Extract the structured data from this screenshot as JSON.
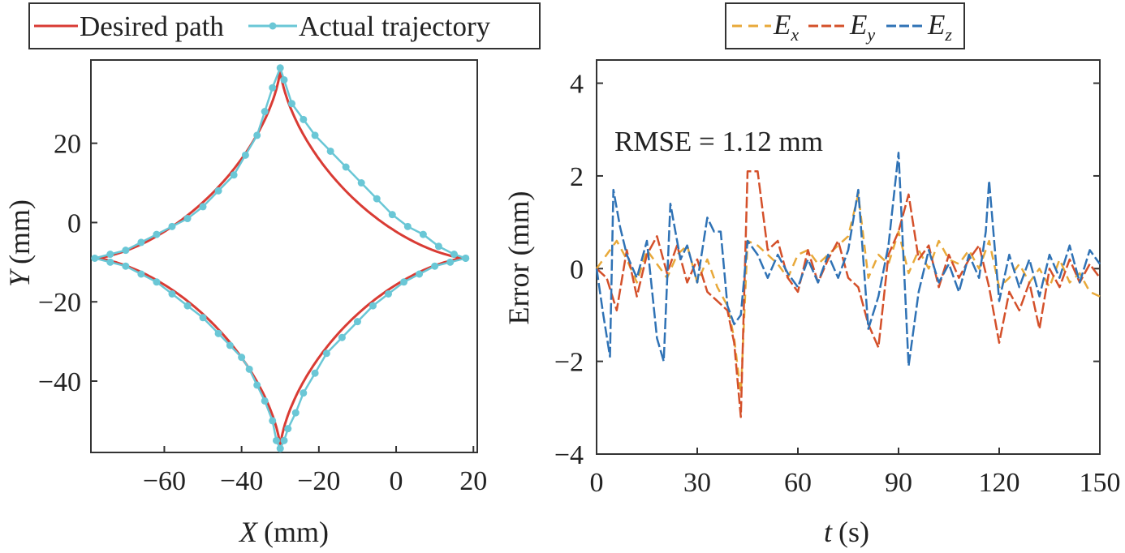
{
  "chart_data": [
    {
      "type": "line",
      "xlabel_var": "X",
      "xlabel_unit": "(mm)",
      "ylabel_var": "Y",
      "ylabel_unit": "(mm)",
      "xlim": [
        -79,
        21
      ],
      "ylim": [
        -58,
        41
      ],
      "x_ticks": [
        -60,
        -40,
        -20,
        0,
        20
      ],
      "y_ticks": [
        20,
        0,
        -20,
        -40
      ],
      "x_tick_labels": [
        "−60",
        "−40",
        "−20",
        "0",
        "20"
      ],
      "y_tick_labels": [
        "20",
        "0",
        "−20",
        "−40"
      ],
      "grid": false,
      "legend": {
        "position": "top",
        "entries": [
          {
            "label": "Desired path",
            "color": "#d93b34",
            "style": "line"
          },
          {
            "label": "Actual trajectory",
            "color": "#6ac7d6",
            "style": "line-with-markers"
          }
        ]
      },
      "series": [
        {
          "name": "Desired path",
          "color": "#d93b34",
          "center": [
            -30,
            -9
          ],
          "radius": 48,
          "points": [
            [
              18,
              -9
            ],
            [
              -30,
              39
            ],
            [
              -78,
              -9
            ],
            [
              -30,
              -57
            ],
            [
              18,
              -9
            ]
          ]
        },
        {
          "name": "Actual trajectory",
          "color": "#6ac7d6",
          "points": [
            [
              18,
              -9
            ],
            [
              14,
              -10
            ],
            [
              10,
              -11
            ],
            [
              6,
              -13
            ],
            [
              2,
              -15
            ],
            [
              -2,
              -18
            ],
            [
              -6,
              -21
            ],
            [
              -10,
              -25
            ],
            [
              -14,
              -29
            ],
            [
              -18,
              -33
            ],
            [
              -21,
              -38
            ],
            [
              -24,
              -43
            ],
            [
              -26,
              -48
            ],
            [
              -28,
              -52
            ],
            [
              -29,
              -55
            ],
            [
              -30,
              -57
            ],
            [
              -31,
              -55
            ],
            [
              -32,
              -50
            ],
            [
              -34,
              -45
            ],
            [
              -36,
              -41
            ],
            [
              -38,
              -37
            ],
            [
              -40,
              -34
            ],
            [
              -43,
              -31
            ],
            [
              -46,
              -28
            ],
            [
              -50,
              -24
            ],
            [
              -54,
              -21
            ],
            [
              -58,
              -18
            ],
            [
              -62,
              -15
            ],
            [
              -66,
              -13
            ],
            [
              -70,
              -11
            ],
            [
              -74,
              -10
            ],
            [
              -78,
              -9
            ],
            [
              -74,
              -8
            ],
            [
              -70,
              -7
            ],
            [
              -66,
              -5
            ],
            [
              -62,
              -3
            ],
            [
              -58,
              -1
            ],
            [
              -54,
              1
            ],
            [
              -50,
              4
            ],
            [
              -46,
              8
            ],
            [
              -42,
              12
            ],
            [
              -39,
              17
            ],
            [
              -36,
              22
            ],
            [
              -34,
              28
            ],
            [
              -32,
              34
            ],
            [
              -30,
              39
            ],
            [
              -29,
              36
            ],
            [
              -27,
              30
            ],
            [
              -24,
              26
            ],
            [
              -21,
              22
            ],
            [
              -17,
              18
            ],
            [
              -13,
              14
            ],
            [
              -9,
              10
            ],
            [
              -5,
              6
            ],
            [
              -1,
              2
            ],
            [
              3,
              -1
            ],
            [
              7,
              -3
            ],
            [
              11,
              -6
            ],
            [
              15,
              -8
            ],
            [
              18,
              -9
            ]
          ]
        }
      ]
    },
    {
      "type": "line",
      "ylabel": "Error (mm)",
      "xlabel_var": "t",
      "xlabel_unit": "(s)",
      "xlim": [
        0,
        150
      ],
      "ylim": [
        -4,
        4.5
      ],
      "x_ticks": [
        0,
        30,
        60,
        90,
        120,
        150
      ],
      "y_ticks": [
        4,
        2,
        0,
        -2,
        -4
      ],
      "x_tick_labels": [
        "0",
        "30",
        "60",
        "90",
        "120",
        "150"
      ],
      "y_tick_labels": [
        "4",
        "2",
        "0",
        "−2",
        "−4"
      ],
      "grid": false,
      "annotation": "RMSE = 1.12 mm",
      "legend": {
        "position": "top",
        "entries": [
          {
            "var": "E",
            "sub": "x",
            "color": "#e8a93a",
            "style": "dashed"
          },
          {
            "var": "E",
            "sub": "y",
            "color": "#d4502a",
            "style": "dashed"
          },
          {
            "var": "E",
            "sub": "z",
            "color": "#2f72b5",
            "style": "dashed"
          }
        ]
      },
      "series": [
        {
          "name": "Ex",
          "color": "#e8a93a",
          "x": [
            0,
            3,
            6,
            9,
            12,
            15,
            18,
            21,
            24,
            27,
            30,
            33,
            36,
            39,
            41,
            43,
            45,
            48,
            51,
            54,
            57,
            60,
            63,
            66,
            69,
            72,
            75,
            78,
            81,
            84,
            87,
            90,
            93,
            96,
            99,
            102,
            105,
            108,
            111,
            114,
            117,
            120,
            123,
            126,
            129,
            132,
            135,
            138,
            141,
            144,
            147,
            150
          ],
          "y": [
            0,
            0.3,
            0.6,
            0.2,
            -0.3,
            0.4,
            0.1,
            -0.2,
            0.3,
            0.5,
            -0.3,
            0.2,
            -0.4,
            -0.8,
            -1.5,
            -2.7,
            0.6,
            0.5,
            0.3,
            0.1,
            -0.2,
            0.3,
            0.4,
            0.1,
            0.3,
            0.5,
            0.7,
            1.6,
            -0.2,
            0.3,
            0.1,
            0.8,
            -0.1,
            0.4,
            0.0,
            0.6,
            0.2,
            0.1,
            0.4,
            0.0,
            0.6,
            -0.4,
            -0.2,
            0.1,
            -0.3,
            0.0,
            -0.4,
            0.2,
            -0.3,
            -0.1,
            -0.5,
            -0.6
          ]
        },
        {
          "name": "Ey",
          "color": "#d4502a",
          "x": [
            0,
            3,
            6,
            9,
            12,
            15,
            18,
            21,
            24,
            27,
            30,
            33,
            36,
            39,
            41,
            43,
            45,
            48,
            51,
            54,
            57,
            60,
            63,
            66,
            69,
            72,
            75,
            78,
            81,
            84,
            87,
            90,
            93,
            96,
            99,
            102,
            105,
            108,
            111,
            114,
            117,
            120,
            123,
            126,
            129,
            132,
            135,
            138,
            141,
            144,
            147,
            150
          ],
          "y": [
            0,
            -0.2,
            -0.9,
            0.4,
            -0.6,
            0.3,
            0.7,
            -0.1,
            0.5,
            -0.3,
            0.2,
            -0.5,
            -0.7,
            -0.9,
            -1.6,
            -3.2,
            2.1,
            2.1,
            0.4,
            0.6,
            -0.2,
            -0.5,
            0.4,
            -0.3,
            0.2,
            0.6,
            -0.2,
            -0.4,
            -1.2,
            -1.7,
            0.3,
            0.8,
            1.6,
            0.2,
            0.5,
            -0.4,
            0.3,
            -0.2,
            0.2,
            0.5,
            -0.4,
            -1.6,
            -0.5,
            -0.9,
            -0.3,
            -1.3,
            0.0,
            -0.4,
            0.2,
            -0.3,
            0.1,
            -0.2
          ]
        },
        {
          "name": "Ez",
          "color": "#2f72b5",
          "x": [
            0,
            2,
            4,
            5,
            7,
            9,
            12,
            15,
            18,
            20,
            22,
            25,
            27,
            30,
            33,
            35,
            37,
            39,
            41,
            43,
            45,
            48,
            51,
            54,
            57,
            60,
            63,
            66,
            69,
            72,
            75,
            78,
            81,
            84,
            87,
            90,
            93,
            96,
            99,
            102,
            105,
            108,
            111,
            114,
            116,
            117,
            120,
            123,
            126,
            129,
            132,
            135,
            138,
            141,
            144,
            147,
            150
          ],
          "y": [
            0,
            -1.0,
            -1.9,
            1.7,
            0.9,
            0.3,
            -0.2,
            0.6,
            -1.5,
            -2.0,
            1.4,
            0.2,
            0.5,
            -0.3,
            1.1,
            0.8,
            0.8,
            -0.8,
            -1.2,
            -1.0,
            0.6,
            0.3,
            -0.2,
            0.3,
            -0.1,
            -0.4,
            0.2,
            -0.3,
            0.3,
            -0.2,
            0.4,
            1.7,
            -1.3,
            -0.6,
            0.5,
            2.5,
            -2.1,
            -0.5,
            0.4,
            -0.3,
            0.1,
            -0.5,
            0.3,
            -0.2,
            0.8,
            1.9,
            -0.7,
            0.3,
            -0.4,
            0.2,
            -0.6,
            0.3,
            -0.2,
            0.5,
            -0.3,
            0.4,
            0.1
          ]
        }
      ]
    }
  ]
}
